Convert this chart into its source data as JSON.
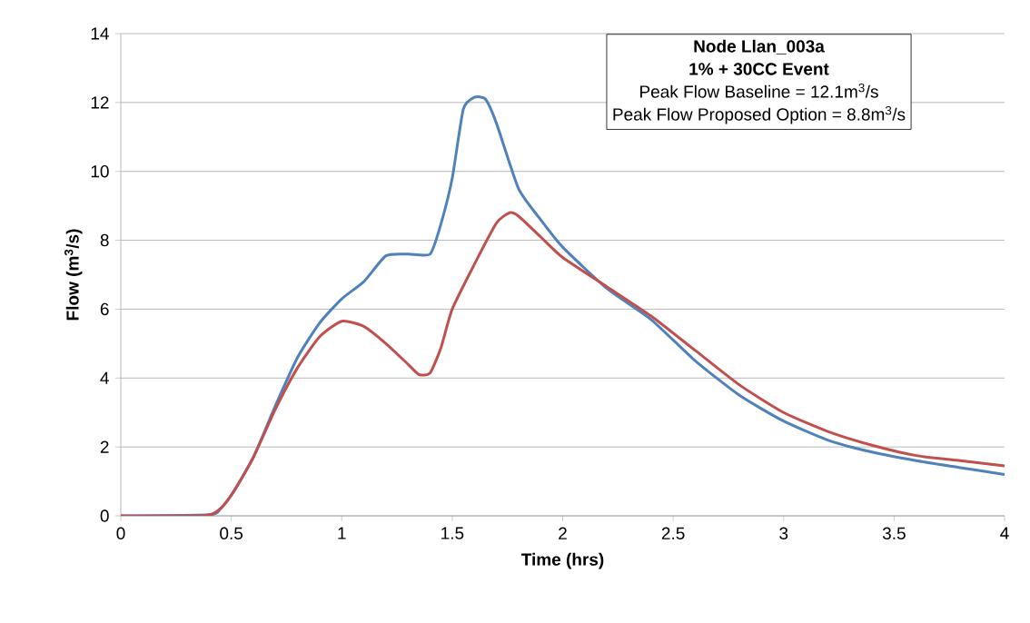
{
  "chart_data": {
    "type": "line",
    "xlabel": "Time (hrs)",
    "ylabel": "Flow (m$^{3}$/s)",
    "annotations": [
      "Node Llan_003a",
      "1% + 30CC Event",
      "Peak Flow Baseline = 12.1m$^{3}$/s",
      "Peak Flow Proposed Option = 8.8m$^{3}$/s"
    ],
    "xlim": [
      0,
      4
    ],
    "xticks": [
      0,
      0.5,
      1,
      1.5,
      2,
      2.5,
      3,
      3.5,
      4
    ],
    "ylim": [
      0,
      14
    ],
    "yticks": [
      0,
      2,
      4,
      6,
      8,
      10,
      12,
      14
    ],
    "grid": "y",
    "marker": "none",
    "line_style": "solid",
    "series": [
      {
        "color": "#4f81bd",
        "x": [
          0,
          0.4,
          0.45,
          0.5,
          0.6,
          0.7,
          0.8,
          0.9,
          1.0,
          1.1,
          1.2,
          1.3,
          1.4,
          1.45,
          1.5,
          1.55,
          1.6,
          1.65,
          1.7,
          1.8,
          1.9,
          2.0,
          2.2,
          2.4,
          2.6,
          2.8,
          3.0,
          3.2,
          3.4,
          3.6,
          3.8,
          4.0
        ],
        "values": [
          0,
          0.03,
          0.2,
          0.6,
          1.7,
          3.2,
          4.6,
          5.6,
          6.3,
          6.8,
          7.55,
          7.6,
          7.6,
          8.5,
          9.8,
          11.8,
          12.15,
          12.1,
          11.4,
          9.5,
          8.6,
          7.8,
          6.6,
          5.7,
          4.5,
          3.5,
          2.75,
          2.2,
          1.85,
          1.6,
          1.4,
          1.2
        ]
      },
      {
        "color": "#c0504d",
        "x": [
          0,
          0.4,
          0.5,
          0.6,
          0.7,
          0.8,
          0.9,
          1.0,
          1.1,
          1.2,
          1.3,
          1.35,
          1.4,
          1.45,
          1.5,
          1.6,
          1.7,
          1.76,
          1.8,
          1.9,
          2.0,
          2.2,
          2.4,
          2.6,
          2.8,
          3.0,
          3.2,
          3.4,
          3.6,
          3.8,
          4.0
        ],
        "values": [
          0,
          0.03,
          0.6,
          1.7,
          3.1,
          4.3,
          5.2,
          5.65,
          5.5,
          5.0,
          4.4,
          4.1,
          4.15,
          4.9,
          6.0,
          7.3,
          8.5,
          8.8,
          8.7,
          8.1,
          7.5,
          6.65,
          5.8,
          4.8,
          3.8,
          3.0,
          2.45,
          2.05,
          1.75,
          1.6,
          1.45
        ]
      }
    ]
  }
}
